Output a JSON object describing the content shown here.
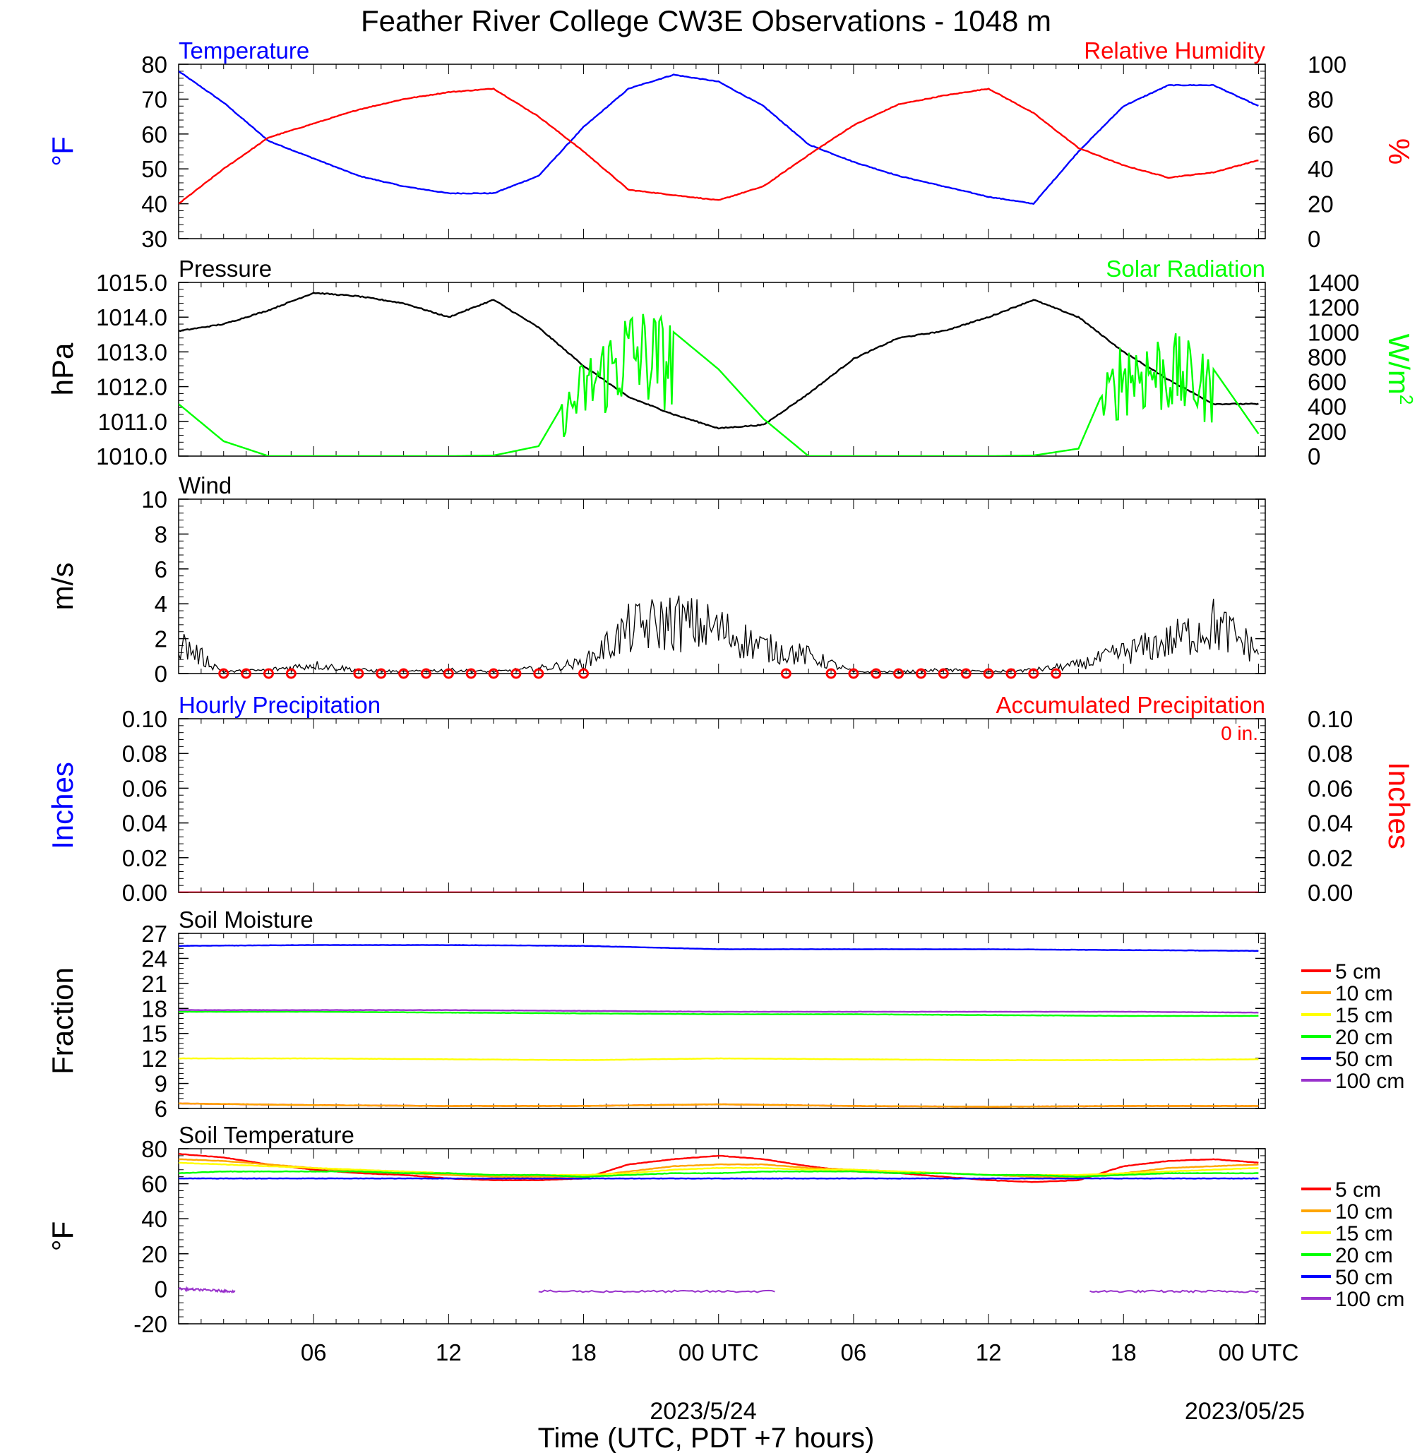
{
  "figure": {
    "title": "Feather River College CW3E Observations - 1048 m",
    "xlabel": "Time (UTC, PDT +7 hours)",
    "date_label_1": "2023/5/24",
    "date_label_2": "2023/05/25",
    "x_tick_labels": [
      "06",
      "12",
      "18",
      "00 UTC",
      "06",
      "12",
      "18",
      "00 UTC"
    ]
  },
  "chart_data": [
    {
      "type": "line",
      "panel": "temperature-humidity",
      "title_left": "Temperature",
      "title_right": "Relative Humidity",
      "ylabel_left": "°F",
      "ylabel_right": "%",
      "ylim_left": [
        30,
        80
      ],
      "ylim_right": [
        0,
        100
      ],
      "yticks_left": [
        "80",
        "70",
        "60",
        "50",
        "40",
        "30"
      ],
      "yticks_right": [
        "100",
        "80",
        "60",
        "40",
        "20",
        "0"
      ],
      "x_hours": [
        0,
        2,
        4,
        6,
        8,
        10,
        12,
        14,
        16,
        18,
        20,
        22,
        24,
        26,
        28,
        30,
        32,
        34,
        36,
        38,
        40,
        42,
        44,
        46,
        48
      ],
      "series": [
        {
          "name": "Temperature",
          "color": "#0000ff",
          "axis": "left",
          "values": [
            78,
            69,
            58,
            53,
            48,
            45,
            43,
            43,
            48,
            62,
            73,
            77,
            75,
            68,
            57,
            52,
            48,
            45,
            42,
            40,
            55,
            68,
            74,
            74,
            68
          ]
        },
        {
          "name": "Relative Humidity",
          "color": "#ff0000",
          "axis": "right",
          "values": [
            20,
            40,
            58,
            66,
            74,
            80,
            84,
            86,
            70,
            50,
            28,
            25,
            22,
            30,
            48,
            65,
            77,
            82,
            86,
            72,
            52,
            42,
            35,
            38,
            45
          ]
        }
      ]
    },
    {
      "type": "line",
      "panel": "pressure-solar",
      "title_left": "Pressure",
      "title_right": "Solar Radiation",
      "ylabel_left": "hPa",
      "ylabel_right": "W/m",
      "ylabel_right_sup": "2",
      "ylim_left": [
        1010.0,
        1015.0
      ],
      "ylim_right": [
        0,
        1400
      ],
      "yticks_left": [
        "1015.0",
        "1014.0",
        "1013.0",
        "1012.0",
        "1011.0",
        "1010.0"
      ],
      "yticks_right": [
        "1400",
        "1200",
        "1000",
        "800",
        "600",
        "400",
        "200",
        "0"
      ],
      "x_hours": [
        0,
        2,
        4,
        6,
        8,
        10,
        12,
        14,
        16,
        18,
        20,
        22,
        24,
        26,
        28,
        30,
        32,
        34,
        36,
        38,
        40,
        42,
        44,
        46,
        48
      ],
      "series": [
        {
          "name": "Pressure",
          "color": "#000000",
          "axis": "left",
          "values": [
            1013.6,
            1013.8,
            1014.2,
            1014.7,
            1014.6,
            1014.4,
            1014.0,
            1014.5,
            1013.7,
            1012.6,
            1011.7,
            1011.2,
            1010.8,
            1010.9,
            1011.8,
            1012.8,
            1013.4,
            1013.6,
            1014.0,
            1014.5,
            1014.0,
            1013.0,
            1012.2,
            1011.5,
            1011.5
          ]
        },
        {
          "name": "Solar Radiation",
          "color": "#00ff00",
          "axis": "right",
          "values": [
            420,
            120,
            0,
            0,
            0,
            0,
            0,
            5,
            80,
            700,
            1100,
            1000,
            700,
            300,
            0,
            0,
            0,
            0,
            0,
            5,
            60,
            900,
            900,
            700,
            180
          ]
        }
      ]
    },
    {
      "type": "line",
      "panel": "wind",
      "title_left": "Wind",
      "ylabel_left": "m/s",
      "ylim_left": [
        0,
        10
      ],
      "yticks_left": [
        "10",
        "8",
        "6",
        "4",
        "2",
        "0"
      ],
      "x_hours": [
        0,
        2,
        4,
        6,
        8,
        10,
        12,
        14,
        16,
        18,
        20,
        22,
        24,
        26,
        28,
        30,
        32,
        34,
        36,
        38,
        40,
        42,
        44,
        46,
        48
      ],
      "series": [
        {
          "name": "Wind speed",
          "color": "#000000",
          "axis": "left",
          "values": [
            1.8,
            0.1,
            0.2,
            0.5,
            0.2,
            0.1,
            0.2,
            0.1,
            0.3,
            0.6,
            2.5,
            3.0,
            2.5,
            1.5,
            1.0,
            0.1,
            0.1,
            0.2,
            0.1,
            0.2,
            0.5,
            1.2,
            1.8,
            2.8,
            1.3
          ]
        }
      ],
      "calm_markers_hours": [
        2,
        3,
        4,
        5,
        8,
        9,
        10,
        11,
        12,
        13,
        14,
        15,
        16,
        18,
        27,
        29,
        30,
        31,
        32,
        33,
        34,
        35,
        36,
        37,
        38,
        39
      ]
    },
    {
      "type": "line",
      "panel": "precipitation",
      "title_left": "Hourly Precipitation",
      "title_right": "Accumulated Precipitation",
      "annotation": "0 in.",
      "ylabel_left": "Inches",
      "ylabel_right": "Inches",
      "ylim_left": [
        0,
        0.1
      ],
      "ylim_right": [
        0,
        0.1
      ],
      "yticks_left": [
        "0.10",
        "0.08",
        "0.06",
        "0.04",
        "0.02",
        "0.00"
      ],
      "yticks_right": [
        "0.10",
        "0.08",
        "0.06",
        "0.04",
        "0.02",
        "0.00"
      ],
      "x_hours": [
        0,
        48
      ],
      "series": [
        {
          "name": "Hourly Precipitation",
          "color": "#0000ff",
          "axis": "left",
          "values": [
            0,
            0
          ]
        },
        {
          "name": "Accumulated Precipitation",
          "color": "#ff0000",
          "axis": "right",
          "values": [
            0,
            0
          ]
        }
      ]
    },
    {
      "type": "line",
      "panel": "soil-moisture",
      "title_left": "Soil Moisture",
      "ylabel_left": "Fraction",
      "ylim_left": [
        6,
        27
      ],
      "yticks_left": [
        "27",
        "24",
        "21",
        "18",
        "15",
        "12",
        "9",
        "6"
      ],
      "x_hours": [
        0,
        6,
        12,
        18,
        24,
        30,
        36,
        42,
        48
      ],
      "series": [
        {
          "name": "5 cm",
          "color": "#ff0000",
          "values": [
            6.6,
            6.4,
            6.3,
            6.3,
            6.5,
            6.3,
            6.2,
            6.3,
            6.3
          ]
        },
        {
          "name": "10 cm",
          "color": "#ffa500",
          "values": [
            6.6,
            6.4,
            6.3,
            6.3,
            6.5,
            6.3,
            6.2,
            6.3,
            6.3
          ]
        },
        {
          "name": "15 cm",
          "color": "#ffff00",
          "values": [
            12.0,
            12.0,
            11.9,
            11.8,
            12.0,
            11.9,
            11.8,
            11.8,
            11.9
          ]
        },
        {
          "name": "20 cm",
          "color": "#00ff00",
          "values": [
            17.6,
            17.6,
            17.5,
            17.4,
            17.3,
            17.3,
            17.2,
            17.1,
            17.1
          ]
        },
        {
          "name": "50 cm",
          "color": "#0000ff",
          "values": [
            25.5,
            25.6,
            25.6,
            25.5,
            25.1,
            25.1,
            25.1,
            25.0,
            24.9
          ]
        },
        {
          "name": "100 cm",
          "color": "#9932cc",
          "values": [
            17.8,
            17.8,
            17.8,
            17.7,
            17.6,
            17.6,
            17.6,
            17.6,
            17.5
          ]
        }
      ],
      "legend": [
        "5 cm",
        "10 cm",
        "15 cm",
        "20 cm",
        "50 cm",
        "100 cm"
      ]
    },
    {
      "type": "line",
      "panel": "soil-temperature",
      "title_left": "Soil Temperature",
      "ylabel_left": "°F",
      "ylim_left": [
        -20,
        80
      ],
      "yticks_left": [
        "80",
        "60",
        "40",
        "20",
        "0",
        "-20"
      ],
      "x_hours": [
        0,
        2,
        4,
        6,
        8,
        10,
        12,
        14,
        16,
        18,
        20,
        22,
        24,
        26,
        28,
        30,
        32,
        34,
        36,
        38,
        40,
        42,
        44,
        46,
        48
      ],
      "series": [
        {
          "name": "5 cm",
          "color": "#ff0000",
          "values": [
            77,
            75,
            71,
            68,
            66,
            65,
            63,
            62,
            62,
            63,
            71,
            74,
            76,
            74,
            70,
            67,
            66,
            64,
            62,
            61,
            62,
            70,
            73,
            74,
            72
          ]
        },
        {
          "name": "10 cm",
          "color": "#ffa500",
          "values": [
            74,
            73,
            71,
            69,
            67,
            66,
            65,
            64,
            64,
            64,
            67,
            70,
            71,
            71,
            69,
            68,
            67,
            66,
            65,
            64,
            64,
            66,
            69,
            70,
            71
          ]
        },
        {
          "name": "15 cm",
          "color": "#ffff00",
          "values": [
            72,
            71,
            70,
            69,
            68,
            67,
            66,
            65,
            65,
            65,
            66,
            68,
            69,
            69,
            68,
            68,
            67,
            66,
            65,
            65,
            65,
            66,
            67,
            68,
            69
          ]
        },
        {
          "name": "20 cm",
          "color": "#00ff00",
          "values": [
            66,
            67,
            67,
            67,
            67,
            66,
            66,
            65,
            65,
            64,
            65,
            66,
            66,
            67,
            67,
            67,
            66,
            66,
            65,
            65,
            64,
            65,
            66,
            66,
            66
          ]
        },
        {
          "name": "50 cm",
          "color": "#0000ff",
          "values": [
            63,
            63,
            63,
            63,
            63,
            63,
            63,
            63,
            63,
            63,
            63,
            63,
            63,
            63,
            63,
            63,
            63,
            63,
            63,
            63,
            63,
            63,
            63,
            63,
            63
          ]
        }
      ],
      "segments_100cm": {
        "name": "100 cm",
        "color": "#9932cc",
        "pieces": [
          {
            "x_hours": [
              0,
              2.5
            ],
            "values": [
              0,
              -1.5
            ]
          },
          {
            "x_hours": [
              16,
              26.5
            ],
            "values": [
              -1.5,
              -1.5
            ]
          },
          {
            "x_hours": [
              40.5,
              48
            ],
            "values": [
              -1.5,
              -1.5
            ]
          }
        ]
      },
      "legend": [
        "5 cm",
        "10 cm",
        "15 cm",
        "20 cm",
        "50 cm",
        "100 cm"
      ]
    }
  ]
}
